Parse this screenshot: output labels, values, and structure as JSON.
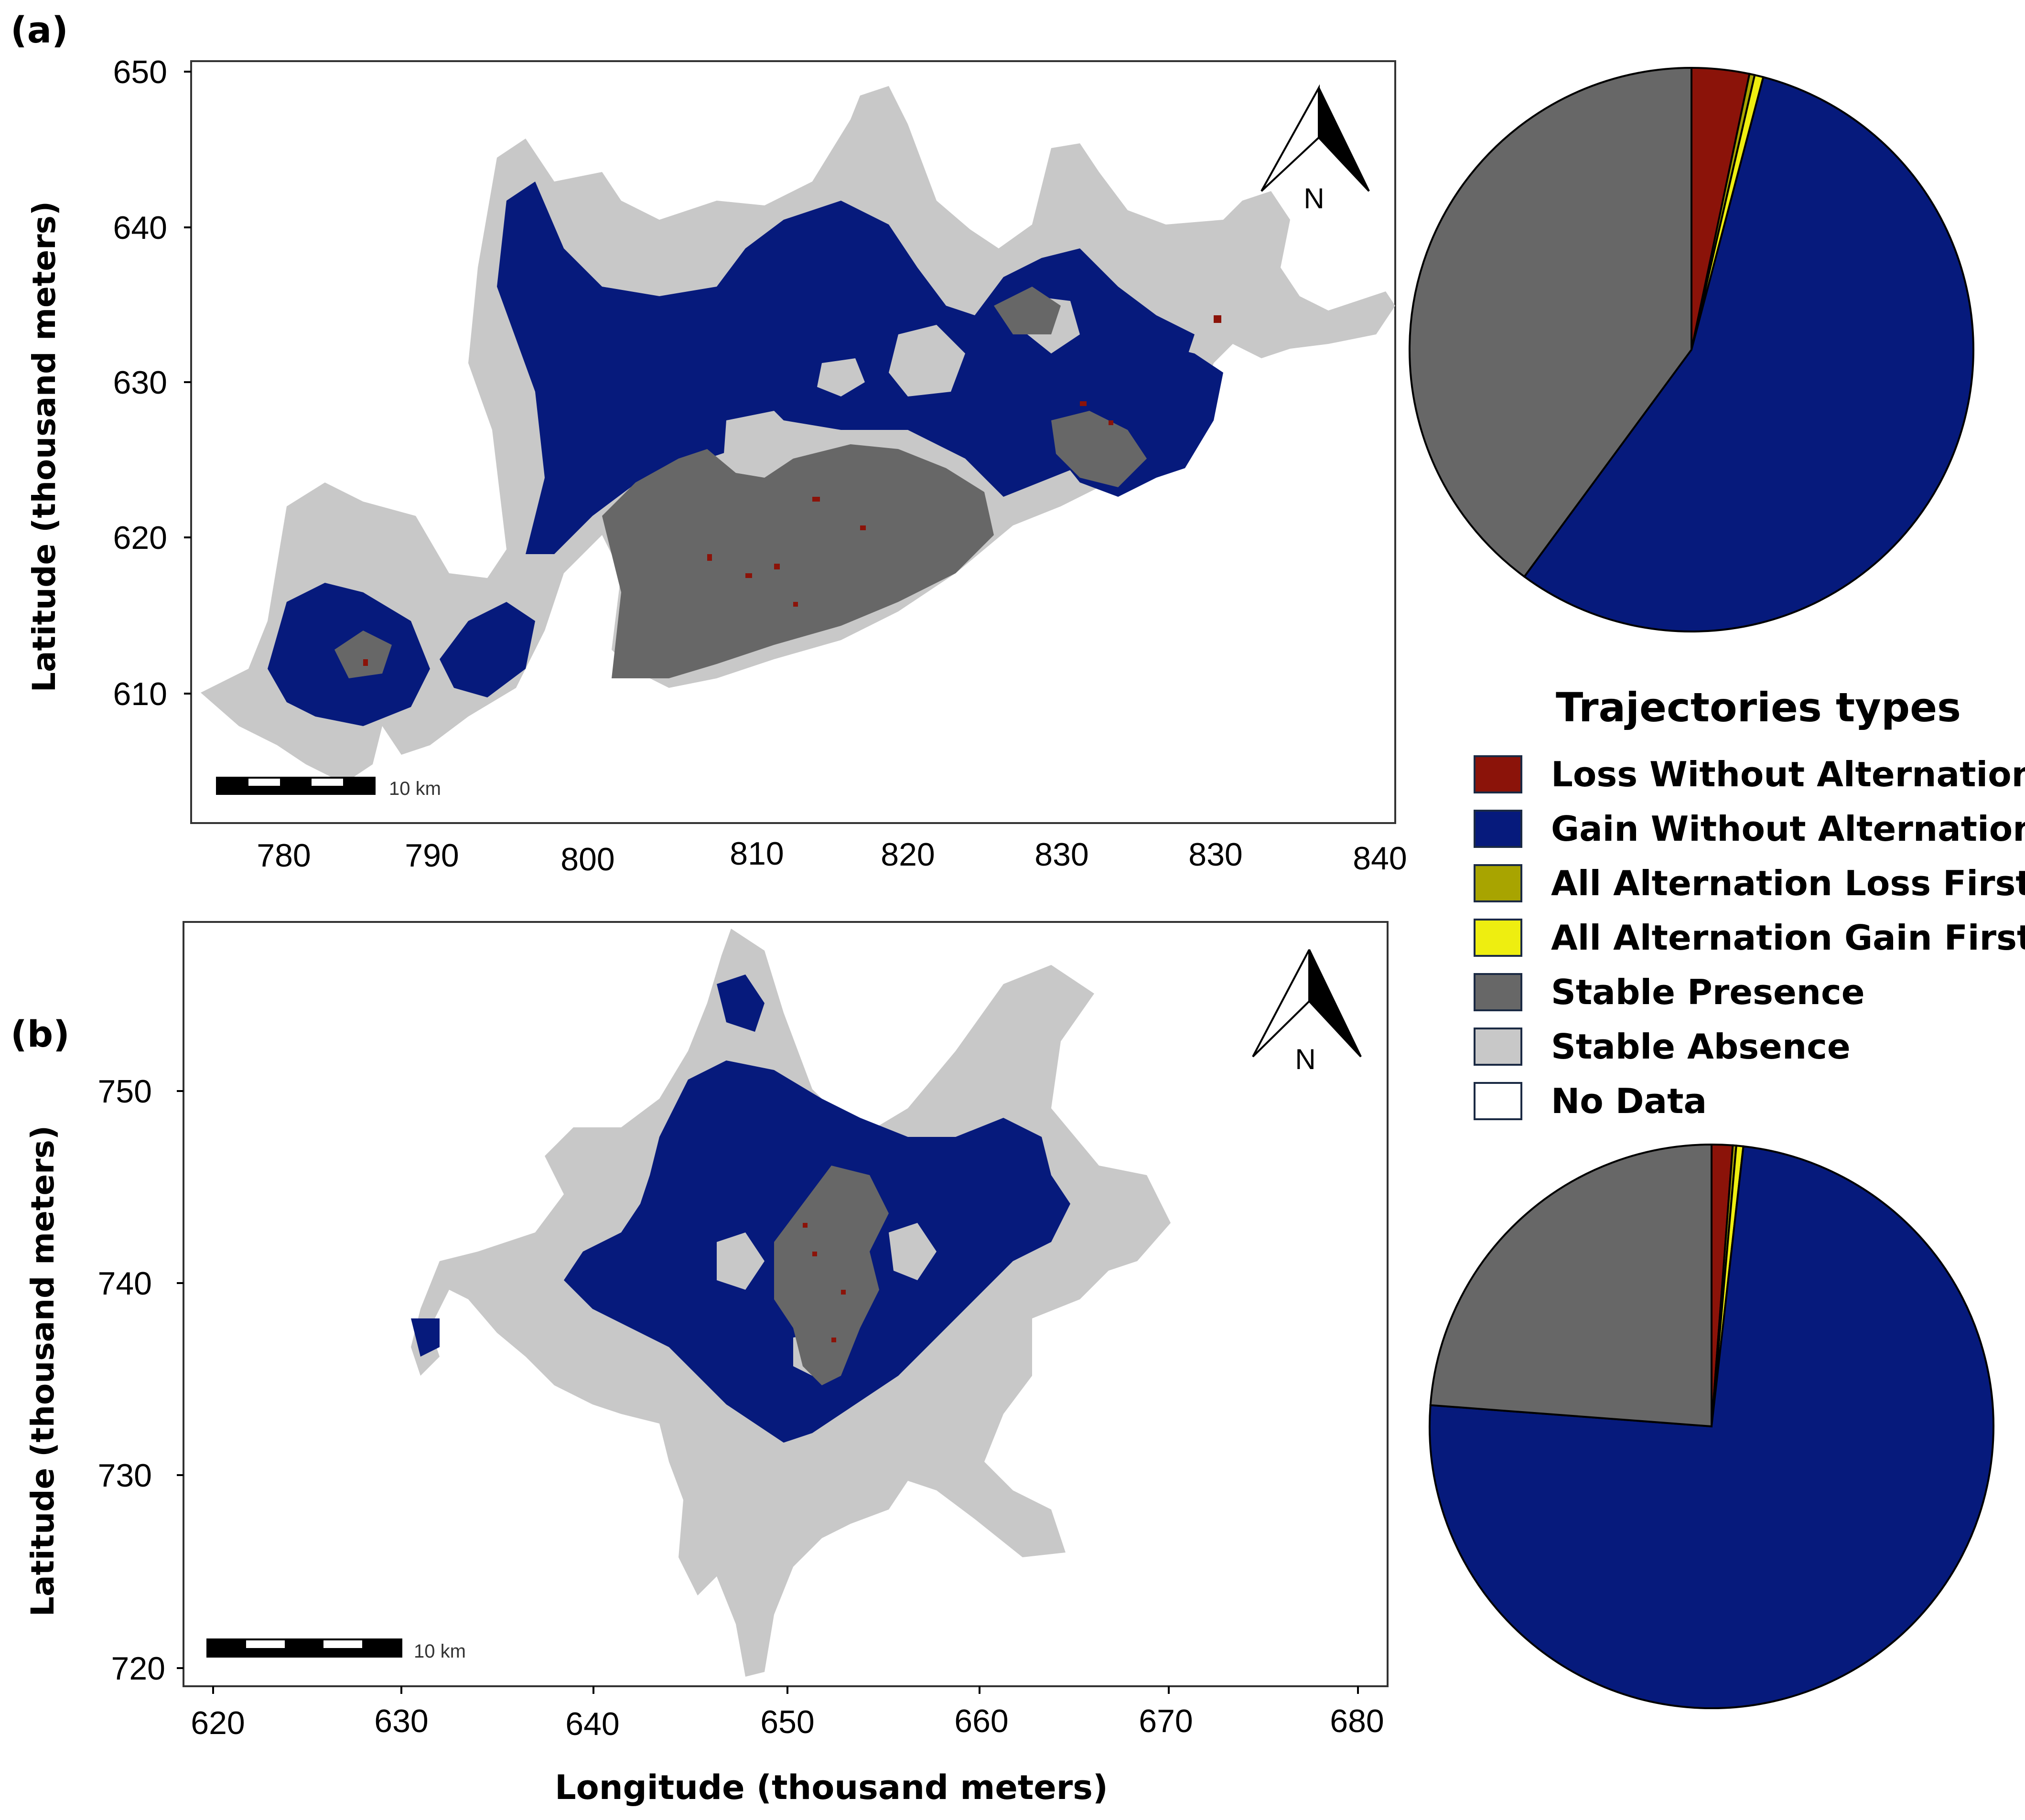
{
  "panel_a": {
    "label": "(a)",
    "ylabel": "Latitude (thousand meters)",
    "y_ticks": [
      "650",
      "640",
      "630",
      "620",
      "610"
    ],
    "x_ticks": [
      "780",
      "790",
      "800",
      "810",
      "820",
      "830",
      "830",
      "840"
    ],
    "north_label": "N",
    "scale_label": "10 km"
  },
  "panel_b": {
    "label": "(b)",
    "ylabel": "Latitude (thousand meters)",
    "xlabel": "Longitude (thousand meters)",
    "y_ticks": [
      "750",
      "740",
      "730",
      "720"
    ],
    "x_ticks": [
      "620",
      "630",
      "640",
      "650",
      "660",
      "670",
      "680"
    ],
    "north_label": "N",
    "scale_label": "10 km"
  },
  "legend": {
    "title": "Trajectories types",
    "items": [
      {
        "label": "Loss Without Alternation",
        "color": "#8b1309"
      },
      {
        "label": "Gain Without Alternation",
        "color": "#061a7c"
      },
      {
        "label": "All Alternation Loss First",
        "color": "#a8a400"
      },
      {
        "label": "All Alternation Gain First",
        "color": "#eeee10"
      },
      {
        "label": "Stable Presence",
        "color": "#676767"
      },
      {
        "label": "Stable Absence",
        "color": "#c8c8c8"
      },
      {
        "label": "No Data",
        "color": "#ffffff"
      }
    ]
  },
  "chart_data": [
    {
      "type": "pie",
      "panel": "a",
      "slices": [
        {
          "category": "Loss Without Alternation",
          "value": 3.3,
          "color": "#8b1309"
        },
        {
          "category": "All Alternation Loss First",
          "value": 0.3,
          "color": "#a8a400"
        },
        {
          "category": "All Alternation Gain First",
          "value": 0.5,
          "color": "#eeee10"
        },
        {
          "category": "Gain Without Alternation",
          "value": 56.0,
          "color": "#061a7c"
        },
        {
          "category": "Stable Presence",
          "value": 39.9,
          "color": "#676767"
        }
      ]
    },
    {
      "type": "pie",
      "panel": "b",
      "slices": [
        {
          "category": "Loss Without Alternation",
          "value": 1.2,
          "color": "#8b1309"
        },
        {
          "category": "All Alternation Loss First",
          "value": 0.2,
          "color": "#a8a400"
        },
        {
          "category": "All Alternation Gain First",
          "value": 0.4,
          "color": "#eeee10"
        },
        {
          "category": "Gain Without Alternation",
          "value": 74.4,
          "color": "#061a7c"
        },
        {
          "category": "Stable Presence",
          "value": 23.8,
          "color": "#676767"
        }
      ]
    }
  ]
}
